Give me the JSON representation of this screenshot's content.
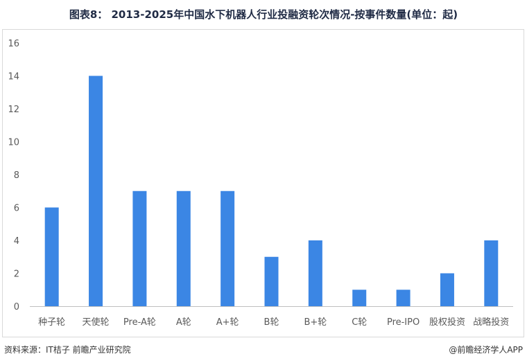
{
  "title": "图表8： 2013-2025年中国水下机器人行业投融资轮次情况-按事件数量(单位：起)",
  "footer": {
    "source": "资料来源：IT桔子 前瞻产业研究院",
    "brand": "@前瞻经济学人APP"
  },
  "colors": {
    "bar": "#3b86e4",
    "grid": "#d9d9d9",
    "axis": "#bfbfbf"
  },
  "chart_data": {
    "type": "bar",
    "categories": [
      "种子轮",
      "天使轮",
      "Pre-A轮",
      "A轮",
      "A+轮",
      "B轮",
      "B+轮",
      "C轮",
      "Pre-IPO",
      "股权投资",
      "战略投资"
    ],
    "values": [
      6,
      14,
      7,
      7,
      7,
      3,
      4,
      1,
      1,
      2,
      4
    ],
    "ylim": [
      0,
      16
    ],
    "yticks": [
      0,
      2,
      4,
      6,
      8,
      10,
      12,
      14,
      16
    ],
    "grid": false,
    "legend": "none",
    "title": "图表8： 2013-2025年中国水下机器人行业投融资轮次情况-按事件数量(单位：起)",
    "xlabel": "",
    "ylabel": ""
  }
}
